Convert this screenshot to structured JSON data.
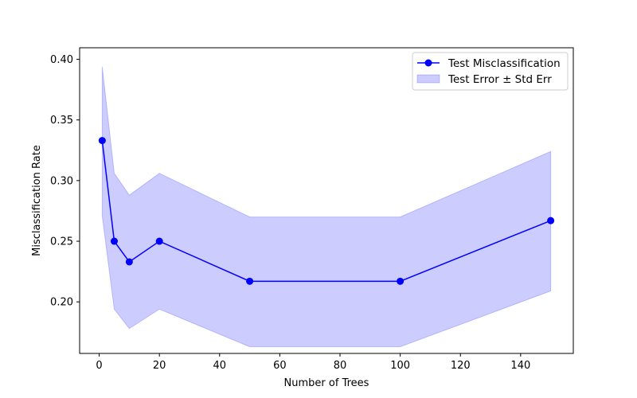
{
  "chart_data": {
    "type": "line",
    "title": "",
    "xlabel": "Number of Trees",
    "ylabel": "Misclassification Rate",
    "xlim": [
      -6.5,
      157.5
    ],
    "ylim": [
      0.1575,
      0.4095
    ],
    "xticks": [
      0,
      20,
      40,
      60,
      80,
      100,
      120,
      140
    ],
    "yticks": [
      0.2,
      0.25,
      0.3,
      0.35,
      0.4
    ],
    "ytick_labels": [
      "0.20",
      "0.25",
      "0.30",
      "0.35",
      "0.40"
    ],
    "grid": false,
    "legend_position": "top-right",
    "x": [
      1,
      5,
      10,
      20,
      50,
      100,
      150
    ],
    "series": [
      {
        "name": "Test Misclassification",
        "kind": "line-marker",
        "color": "#0000ff",
        "values": [
          0.333,
          0.25,
          0.233,
          0.25,
          0.217,
          0.217,
          0.267
        ]
      },
      {
        "name": "Test Error ± Std Err",
        "kind": "band",
        "color": "#0000ff",
        "lower": [
          0.271,
          0.194,
          0.178,
          0.194,
          0.163,
          0.163,
          0.209
        ],
        "upper": [
          0.394,
          0.306,
          0.288,
          0.306,
          0.27,
          0.27,
          0.324
        ]
      }
    ]
  }
}
